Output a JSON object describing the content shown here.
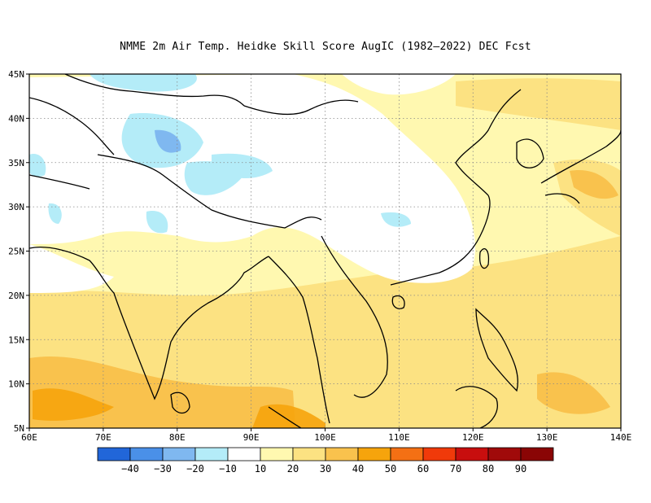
{
  "title": "NMME  2m Air Temp. Heidke Skill Score AugIC (1982–2022) DEC Fcst",
  "map": {
    "lon_range": [
      60,
      140
    ],
    "lat_range": [
      5,
      45
    ],
    "lon_ticks": [
      {
        "value": 60,
        "label": "60E"
      },
      {
        "value": 70,
        "label": "70E"
      },
      {
        "value": 80,
        "label": "80E"
      },
      {
        "value": 90,
        "label": "90E"
      },
      {
        "value": 100,
        "label": "100E"
      },
      {
        "value": 110,
        "label": "110E"
      },
      {
        "value": 120,
        "label": "120E"
      },
      {
        "value": 130,
        "label": "130E"
      },
      {
        "value": 140,
        "label": "140E"
      }
    ],
    "lat_ticks": [
      {
        "value": 5,
        "label": "5N"
      },
      {
        "value": 10,
        "label": "10N"
      },
      {
        "value": 15,
        "label": "15N"
      },
      {
        "value": 20,
        "label": "20N"
      },
      {
        "value": 25,
        "label": "25N"
      },
      {
        "value": 30,
        "label": "30N"
      },
      {
        "value": 35,
        "label": "35N"
      },
      {
        "value": 40,
        "label": "40N"
      },
      {
        "value": 45,
        "label": "45N"
      }
    ],
    "grid": "dotted",
    "coastline_color": "#000000"
  },
  "colorbar": {
    "colors": [
      "#2166d9",
      "#4a90e8",
      "#7fb8f0",
      "#b4ecf8",
      "#ffffff",
      "#fff8b0",
      "#fce282",
      "#f9c24d",
      "#f6a40c",
      "#f47014",
      "#f03a0a",
      "#c80e0e",
      "#a00a0a",
      "#8a0505"
    ],
    "labels": [
      "−40",
      "−30",
      "−20",
      "−10",
      "10",
      "20",
      "30",
      "40",
      "50",
      "60",
      "70",
      "80",
      "90"
    ]
  }
}
